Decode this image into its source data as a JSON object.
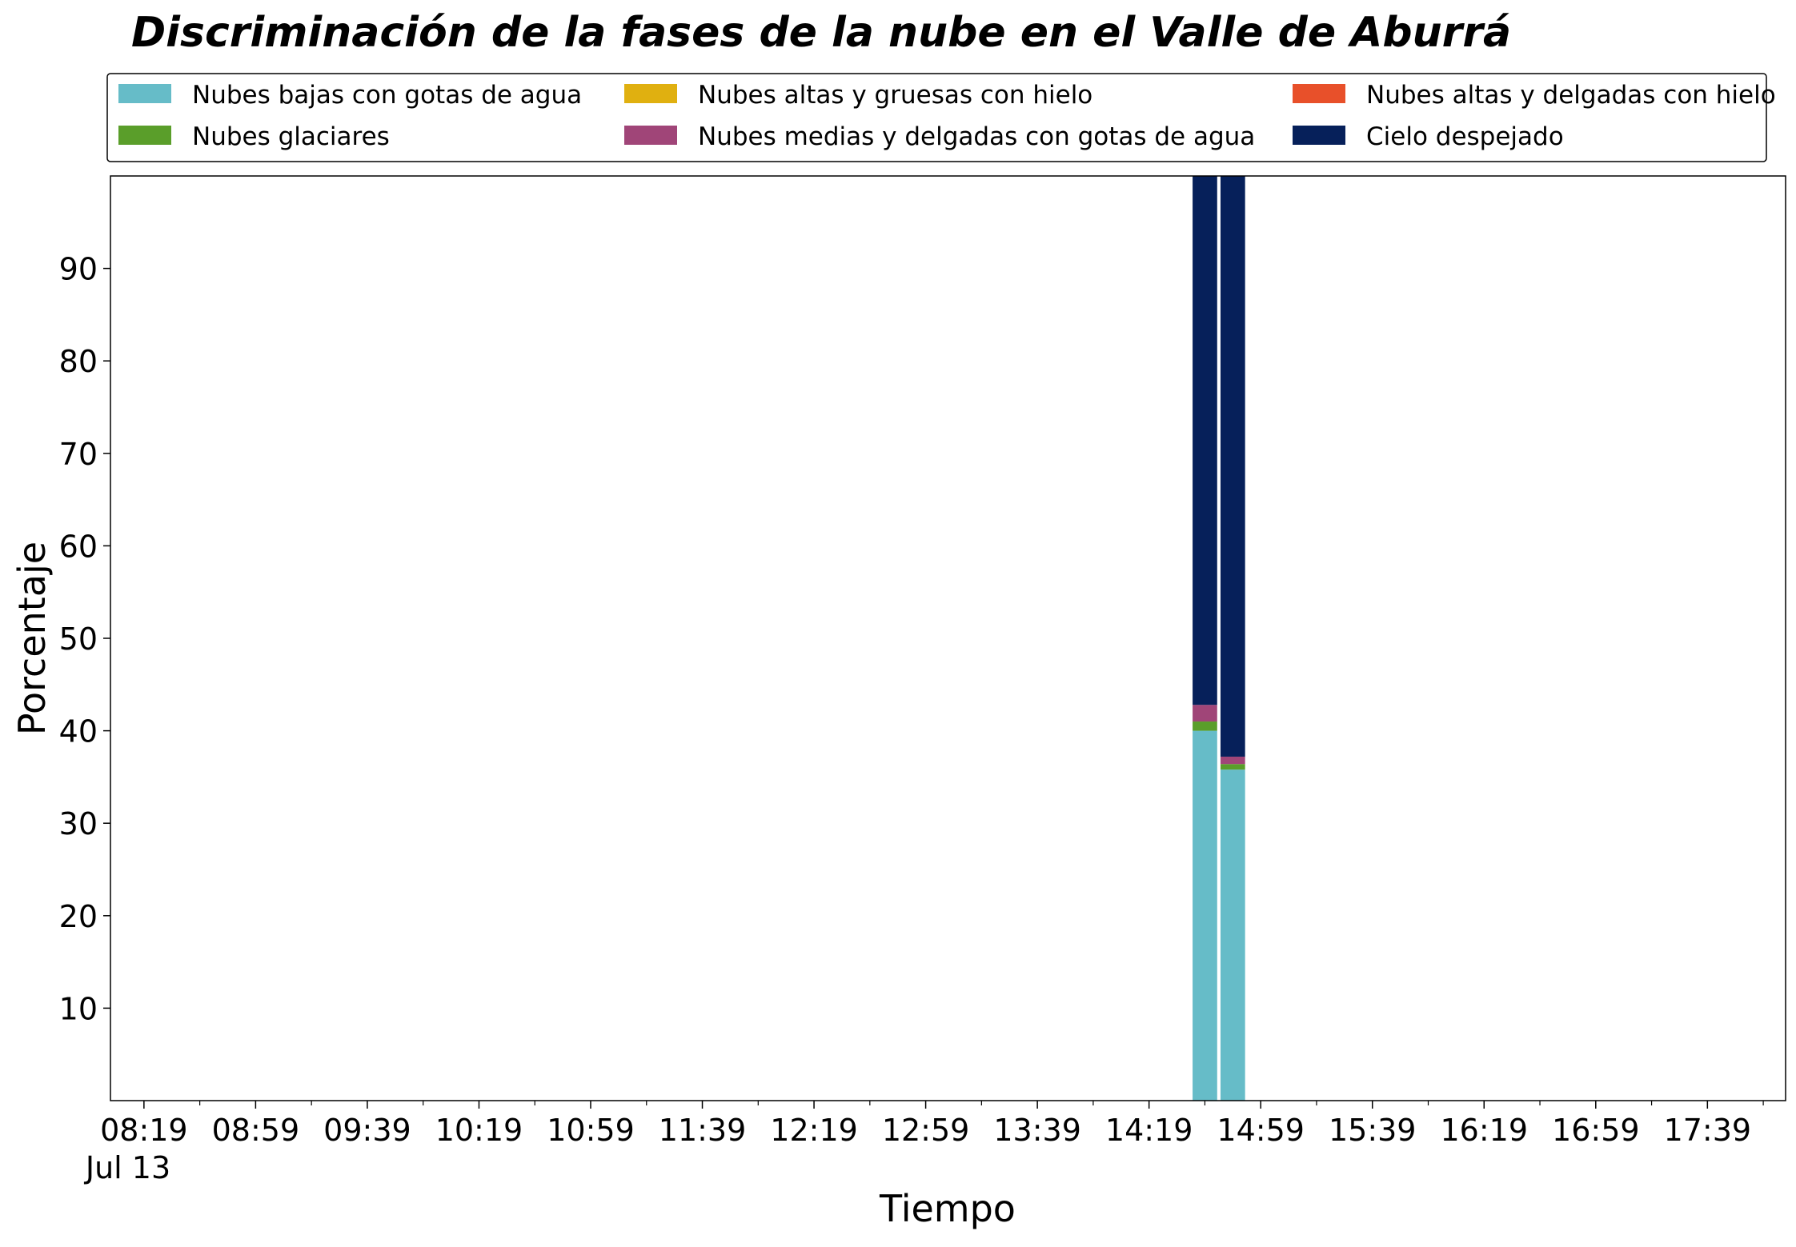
{
  "chart_data": {
    "type": "bar",
    "stacked": true,
    "title": "Discriminación de la fases de la nube en el Valle de Aburrá",
    "xlabel": "Tiempo",
    "ylabel": "Porcentaje",
    "ylim": [
      0,
      100
    ],
    "yticks": [
      10,
      20,
      30,
      40,
      50,
      60,
      70,
      80,
      90
    ],
    "xlim_minutes": [
      487,
      1087
    ],
    "xticks": [
      {
        "label": "08:19",
        "minute": 499
      },
      {
        "label": "08:59",
        "minute": 539
      },
      {
        "label": "09:39",
        "minute": 579
      },
      {
        "label": "10:19",
        "minute": 619
      },
      {
        "label": "10:59",
        "minute": 659
      },
      {
        "label": "11:39",
        "minute": 699
      },
      {
        "label": "12:19",
        "minute": 739
      },
      {
        "label": "12:59",
        "minute": 779
      },
      {
        "label": "13:39",
        "minute": 819
      },
      {
        "label": "14:19",
        "minute": 859
      },
      {
        "label": "14:59",
        "minute": 899
      },
      {
        "label": "15:39",
        "minute": 939
      },
      {
        "label": "16:19",
        "minute": 979
      },
      {
        "label": "16:59",
        "minute": 1019
      },
      {
        "label": "17:39",
        "minute": 1059
      }
    ],
    "date_label": "Jul 13",
    "grid": false,
    "legend_position": "top",
    "x": [
      "14:39",
      "14:49"
    ],
    "x_minutes": [
      879,
      889
    ],
    "series": [
      {
        "name": "Nubes bajas con gotas de agua",
        "color": "#66bcc8",
        "values": [
          40.0,
          35.8
        ]
      },
      {
        "name": "Nubes glaciares",
        "color": "#5a9e2a",
        "values": [
          1.0,
          0.6
        ]
      },
      {
        "name": "Nubes altas y gruesas con hielo",
        "color": "#e0b010",
        "values": [
          0.0,
          0.0
        ]
      },
      {
        "name": "Nubes medias y delgadas con gotas de agua",
        "color": "#a04578",
        "values": [
          1.8,
          0.8
        ]
      },
      {
        "name": "Nubes altas y delgadas con hielo",
        "color": "#e8502a",
        "values": [
          0.0,
          0.0
        ]
      },
      {
        "name": "Cielo despejado",
        "color": "#06205a",
        "values": [
          57.2,
          62.8
        ]
      }
    ]
  }
}
